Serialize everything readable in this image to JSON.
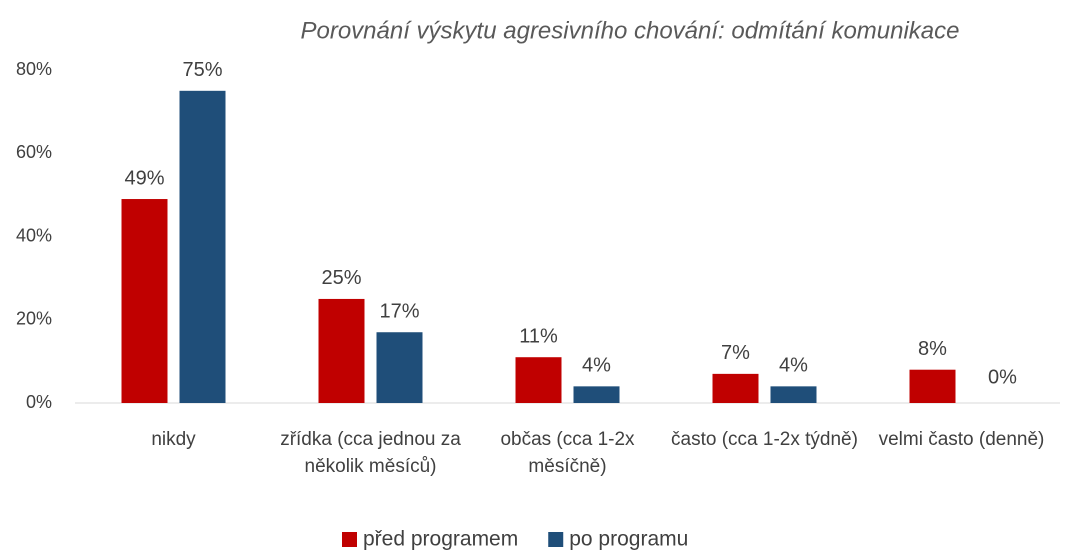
{
  "chart_data": {
    "type": "bar",
    "title": "Porovnání výskytu agresivního chování: odmítání komunikace",
    "categories": [
      "nikdy",
      "zřídka (cca jednou za několik měsíců)",
      "občas (cca 1-2x měsíčně)",
      "často (cca 1-2x týdně)",
      "velmi často (denně)"
    ],
    "series": [
      {
        "name": "před programem",
        "color": "#c00000",
        "values": [
          49,
          25,
          11,
          7,
          8
        ],
        "value_labels": [
          "49%",
          "25%",
          "11%",
          "7%",
          "8%"
        ]
      },
      {
        "name": "po programu",
        "color": "#1f4e79",
        "values": [
          75,
          17,
          4,
          4,
          0
        ],
        "value_labels": [
          "75%",
          "17%",
          "4%",
          "4%",
          "0%"
        ]
      }
    ],
    "ylim": [
      0,
      80
    ],
    "yticks": [
      {
        "value": 0,
        "label": "0%"
      },
      {
        "value": 20,
        "label": "20%"
      },
      {
        "value": 40,
        "label": "40%"
      },
      {
        "value": 60,
        "label": "60%"
      },
      {
        "value": 80,
        "label": "80%"
      }
    ],
    "grid": false,
    "legend": "bottom"
  }
}
